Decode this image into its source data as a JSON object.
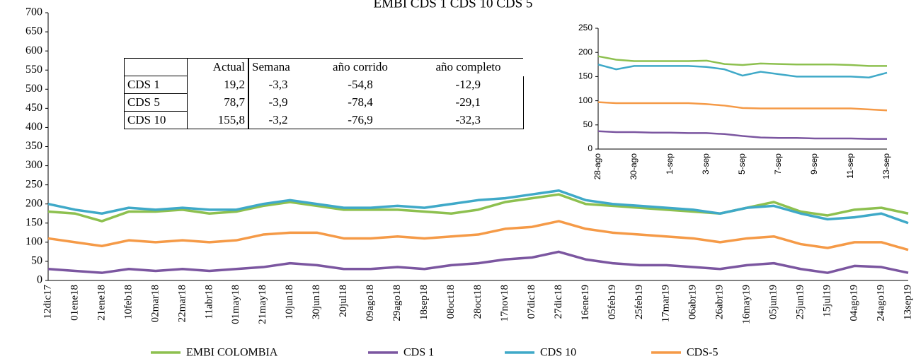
{
  "chart_data": [
    {
      "type": "line",
      "title": "EMBI CDS  1 CDS 10 CDS 5",
      "categories": [
        "12dic17",
        "01ene18",
        "21ene18",
        "10feb18",
        "02mar18",
        "22mar18",
        "11abr18",
        "01may18",
        "21may18",
        "10jun18",
        "30jun18",
        "20jul18",
        "09ago18",
        "29ago18",
        "18sep18",
        "08oct18",
        "28oct18",
        "17nov18",
        "07dic18",
        "27dic18",
        "16ene19",
        "05feb19",
        "25feb19",
        "17mar19",
        "06abr19",
        "26abr19",
        "16may19",
        "05jun19",
        "25jun19",
        "15jul19",
        "04ago19",
        "24ago19",
        "13sep19"
      ],
      "series": [
        {
          "name": "EMBI COLOMBIA",
          "color": "#8dc04f",
          "values": [
            180,
            175,
            155,
            180,
            180,
            185,
            175,
            180,
            195,
            205,
            195,
            185,
            185,
            185,
            180,
            175,
            185,
            205,
            215,
            225,
            200,
            195,
            190,
            185,
            180,
            175,
            190,
            205,
            180,
            170,
            185,
            190,
            175
          ]
        },
        {
          "name": "CDS 1",
          "color": "#7b56a0",
          "values": [
            30,
            25,
            20,
            30,
            25,
            30,
            25,
            30,
            35,
            45,
            40,
            30,
            30,
            35,
            30,
            40,
            45,
            55,
            60,
            75,
            55,
            45,
            40,
            40,
            35,
            30,
            40,
            45,
            30,
            20,
            38,
            35,
            20
          ]
        },
        {
          "name": "CDS 10",
          "color": "#3fa9c8",
          "values": [
            200,
            185,
            175,
            190,
            185,
            190,
            185,
            185,
            200,
            210,
            200,
            190,
            190,
            195,
            190,
            200,
            210,
            215,
            225,
            235,
            210,
            200,
            195,
            190,
            185,
            175,
            190,
            195,
            175,
            160,
            165,
            175,
            150
          ]
        },
        {
          "name": "CDS-5",
          "color": "#f59a47",
          "values": [
            110,
            100,
            90,
            105,
            100,
            105,
            100,
            105,
            120,
            125,
            125,
            110,
            110,
            115,
            110,
            115,
            120,
            135,
            140,
            155,
            135,
            125,
            120,
            115,
            110,
            100,
            110,
            115,
            95,
            85,
            100,
            100,
            80
          ]
        }
      ],
      "ylim": [
        0,
        700
      ],
      "yticks": [
        0,
        50,
        100,
        150,
        200,
        250,
        300,
        350,
        400,
        450,
        500,
        550,
        600,
        650,
        700
      ],
      "legend": "bottom"
    },
    {
      "type": "line",
      "categories": [
        "28-ago",
        null,
        "30-ago",
        null,
        "1-sep",
        null,
        "3-sep",
        null,
        "5-sep",
        null,
        "7-sep",
        null,
        "9-sep",
        null,
        "11-sep",
        null,
        "13-sep"
      ],
      "series": [
        {
          "color": "#8dc04f",
          "values": [
            192,
            185,
            182,
            182,
            182,
            182,
            183,
            176,
            174,
            177,
            176,
            175,
            175,
            175,
            174,
            172,
            172
          ]
        },
        {
          "color": "#3fa9c8",
          "values": [
            175,
            165,
            172,
            172,
            172,
            172,
            170,
            165,
            152,
            160,
            155,
            150,
            150,
            150,
            150,
            148,
            158
          ]
        },
        {
          "color": "#f59a47",
          "values": [
            97,
            95,
            95,
            95,
            95,
            95,
            93,
            90,
            85,
            84,
            84,
            84,
            84,
            84,
            84,
            82,
            80
          ]
        },
        {
          "color": "#7b56a0",
          "values": [
            37,
            35,
            35,
            34,
            34,
            33,
            33,
            31,
            27,
            24,
            23,
            23,
            22,
            22,
            22,
            21,
            21
          ]
        }
      ],
      "ylim": [
        0,
        250
      ],
      "yticks": [
        0,
        50,
        100,
        150,
        200,
        250
      ]
    }
  ],
  "table": {
    "header": [
      "Actual",
      "Semana",
      "año corrido",
      "año completo"
    ],
    "rows": [
      [
        "CDS 1",
        "19,2",
        "-3,3",
        "-54,8",
        "-12,9"
      ],
      [
        "CDS 5",
        "78,7",
        "-3,9",
        "-78,4",
        "-29,1"
      ],
      [
        "CDS 10",
        "155,8",
        "-3,2",
        "-76,9",
        "-32,3"
      ]
    ]
  }
}
